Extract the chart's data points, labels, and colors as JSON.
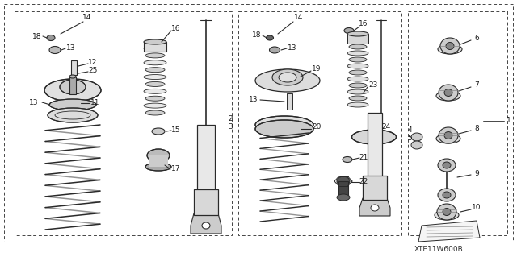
{
  "bg_color": "#ffffff",
  "line_color": "#2a2a2a",
  "text_color": "#1a1a1a",
  "diagram_label": "XTE11W600B",
  "fig_width": 6.4,
  "fig_height": 3.19,
  "dpi": 100
}
